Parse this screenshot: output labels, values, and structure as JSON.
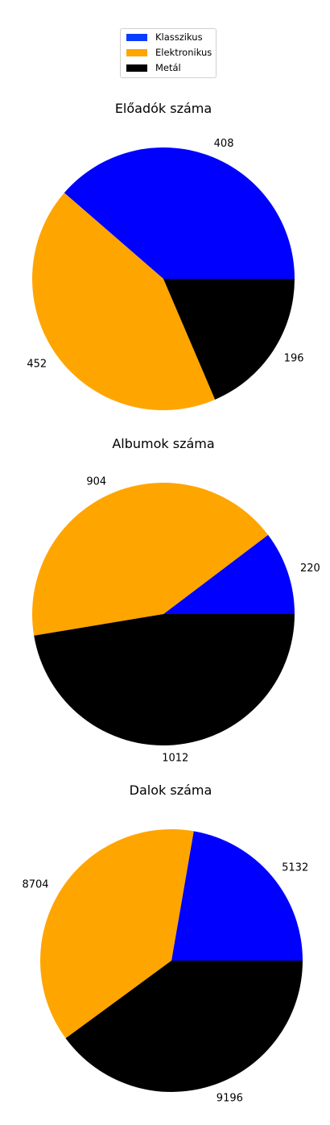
{
  "colors": {
    "Klasszikus": "#0000ff",
    "Elektronikus": "#ffa500",
    "Metál": "#000000",
    "legend_Klasszikus": "#0a3cff"
  },
  "legend": {
    "placement": "top-center",
    "items": [
      {
        "label": "Klasszikus",
        "color": "#0a3cff"
      },
      {
        "label": "Elektronikus",
        "color": "#ffa500"
      },
      {
        "label": "Metál",
        "color": "#000000"
      }
    ]
  },
  "chart_data": [
    {
      "type": "pie",
      "title": "Előadók száma",
      "categories": [
        "Klasszikus",
        "Elektronikus",
        "Metál"
      ],
      "values": [
        408,
        452,
        196
      ],
      "labels": [
        "408",
        "452",
        "196"
      ]
    },
    {
      "type": "pie",
      "title": "Albumok száma",
      "categories": [
        "Klasszikus",
        "Elektronikus",
        "Metál"
      ],
      "values": [
        220,
        904,
        1012
      ],
      "labels": [
        "220",
        "904",
        "1012"
      ]
    },
    {
      "type": "pie",
      "title": "Dalok száma",
      "categories": [
        "Klasszikus",
        "Elektronikus",
        "Metál"
      ],
      "values": [
        5132,
        8704,
        9196
      ],
      "labels": [
        "5132",
        "8704",
        "9196"
      ]
    }
  ]
}
